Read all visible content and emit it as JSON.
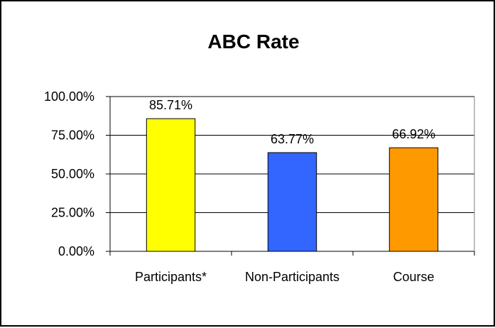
{
  "chart_data": {
    "type": "bar",
    "title": "ABC Rate",
    "categories": [
      "Participants*",
      "Non-Participants",
      "Course"
    ],
    "values": [
      85.71,
      63.77,
      66.92
    ],
    "data_labels": [
      "85.71%",
      "63.77%",
      "66.92%"
    ],
    "colors": [
      "#ffff00",
      "#3366ff",
      "#ff9900"
    ],
    "ylim": [
      0,
      100
    ],
    "yticks": [
      0,
      25,
      50,
      75,
      100
    ],
    "ytick_labels": [
      "0.00%",
      "25.00%",
      "50.00%",
      "75.00%",
      "100.00%"
    ],
    "grid": true,
    "legend": "none",
    "xlabel": "",
    "ylabel": ""
  }
}
